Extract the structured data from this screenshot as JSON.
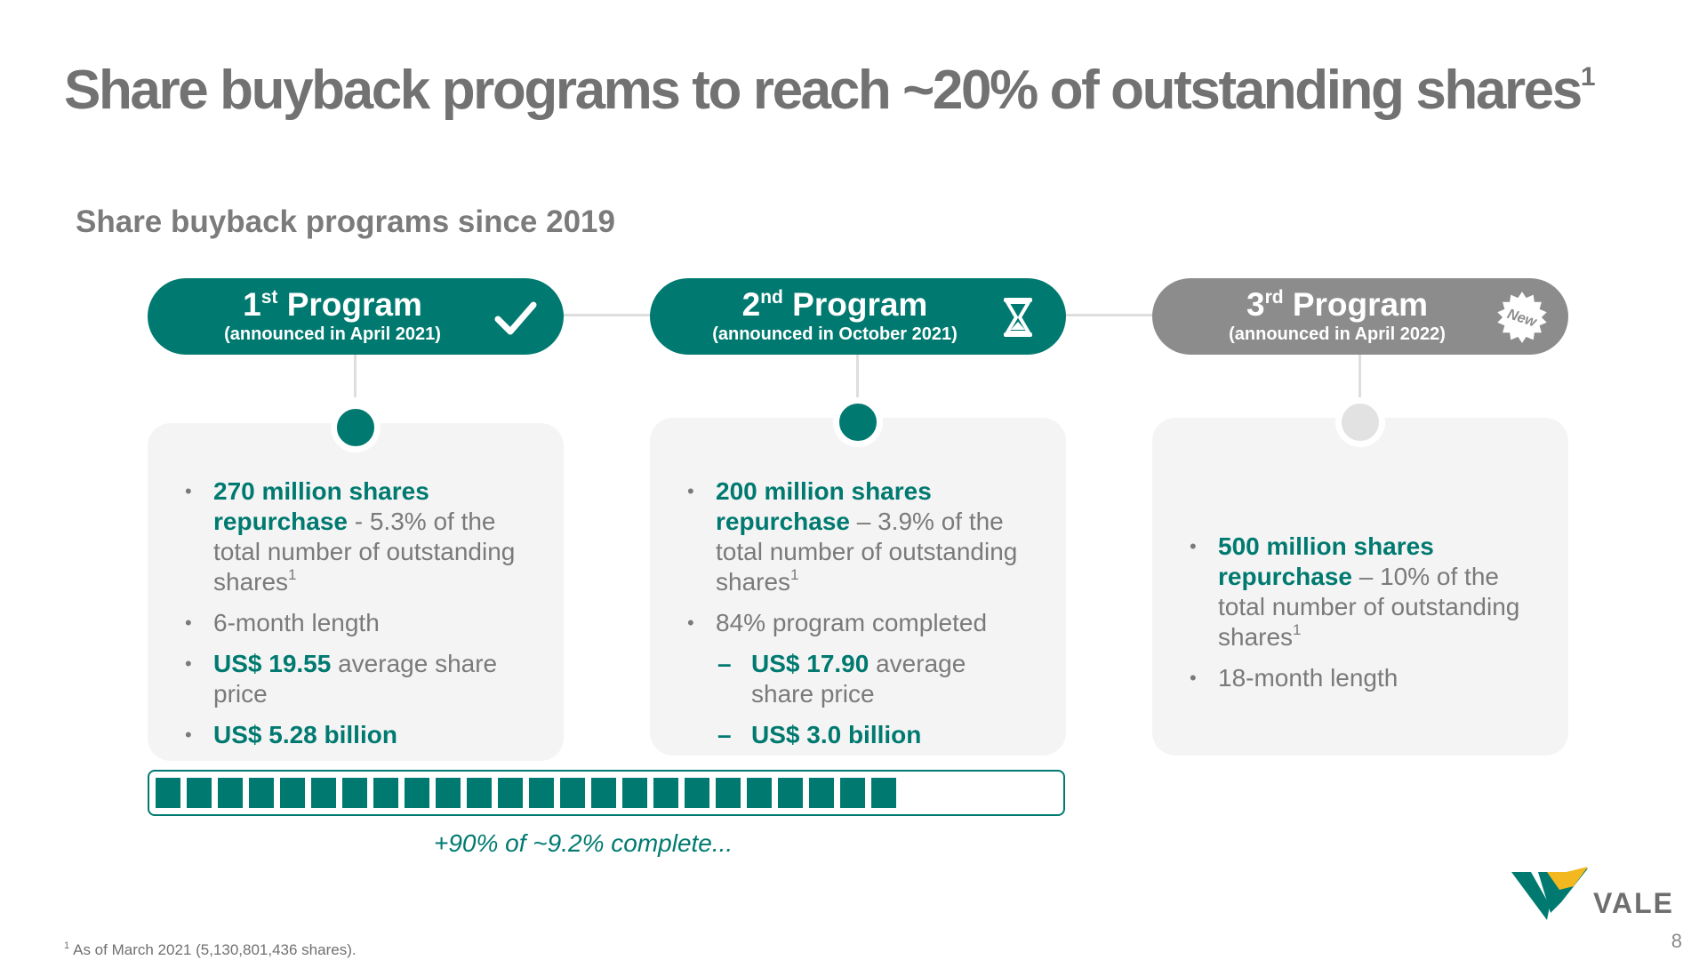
{
  "title": {
    "text": "Share buyback programs to reach ~20% of outstanding shares",
    "sup": "1"
  },
  "subtitle": "Share buyback programs since 2019",
  "programs": [
    {
      "ordinal": "1",
      "suffix": "st",
      "label": "Program",
      "announced": "(announced in April 2021)",
      "icon": "checkmark-icon",
      "color": "#007a70",
      "bullets": [
        {
          "hl": "270 million shares repurchase",
          "text": " - 5.3% of the total number of outstanding shares",
          "sup": "1"
        },
        {
          "text": "6-month length"
        },
        {
          "hl": "US$ 19.55",
          "text": " average share price"
        },
        {
          "hl": "US$ 5.28 billion"
        }
      ]
    },
    {
      "ordinal": "2",
      "suffix": "nd",
      "label": "Program",
      "announced": "(announced in October 2021)",
      "icon": "hourglass-icon",
      "color": "#007a70",
      "bullets": [
        {
          "hl": "200 million shares repurchase",
          "text": " – 3.9% of the total number of outstanding shares",
          "sup": "1"
        },
        {
          "text": "84% program completed"
        },
        {
          "hl": "US$ 17.90",
          "text": " average share price"
        },
        {
          "hl": "US$ 3.0 billion"
        }
      ]
    },
    {
      "ordinal": "3",
      "suffix": "rd",
      "label": "Program",
      "announced": "(announced in April 2022)",
      "icon": "new-badge-icon",
      "badge": "New",
      "color": "#8c8c8c",
      "bullets": [
        {
          "hl": "500 million shares repurchase",
          "text": " – 10% of the total number of outstanding shares",
          "sup": "1"
        },
        {
          "text": "18-month length"
        }
      ]
    }
  ],
  "progress": {
    "filled_segments": 24,
    "total_segments": 30,
    "caption": "+90% of ~9.2% complete..."
  },
  "footnote": {
    "sup": "1",
    "text": "As of March 2021 (5,130,801,436 shares)."
  },
  "page_number": "8",
  "logo": {
    "text": "VALE",
    "green": "#007a70",
    "yellow": "#f3b81f"
  }
}
